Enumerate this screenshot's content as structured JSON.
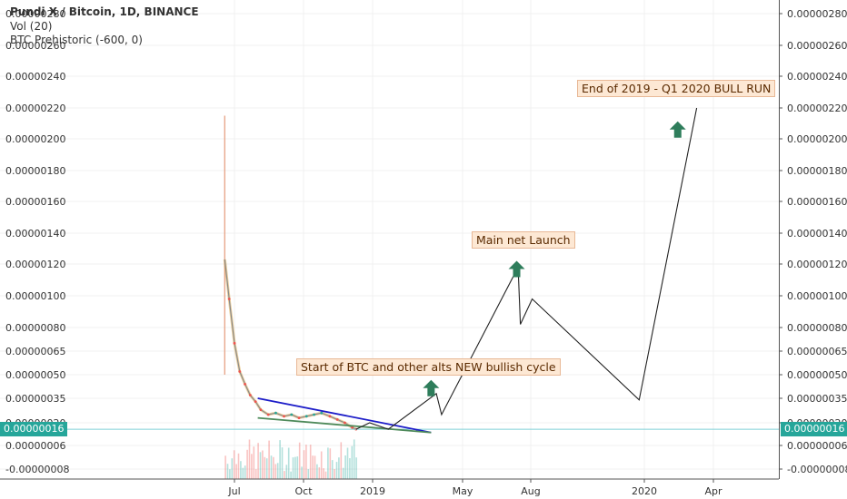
{
  "legend": {
    "title": "Pundi X / Bitcoin, 1D, BINANCE",
    "volume": "Vol (20)",
    "indicator": "BTC Prehistoric (-600, 0)"
  },
  "colors": {
    "up": "#26a69a",
    "down": "#ef5350",
    "projection": "#222222",
    "upper_trendline": "#1c1cc8",
    "lower_trendline": "#4e8a5a",
    "arrow": "#2e7d5b",
    "price_line": "#7fd0d6"
  },
  "chart_data": {
    "type": "line",
    "title": "Pundi X / Bitcoin, 1D, BINANCE",
    "y_ticks": [
      {
        "label": "0.00000280",
        "value": 2.8e-06
      },
      {
        "label": "0.00000260",
        "value": 2.6e-06
      },
      {
        "label": "0.00000240",
        "value": 2.4e-06
      },
      {
        "label": "0.00000220",
        "value": 2.2e-06
      },
      {
        "label": "0.00000200",
        "value": 2e-06
      },
      {
        "label": "0.00000180",
        "value": 1.8e-06
      },
      {
        "label": "0.00000160",
        "value": 1.6e-06
      },
      {
        "label": "0.00000140",
        "value": 1.4e-06
      },
      {
        "label": "0.00000120",
        "value": 1.2e-06
      },
      {
        "label": "0.00000100",
        "value": 1e-06
      },
      {
        "label": "0.00000080",
        "value": 8e-07
      },
      {
        "label": "0.00000065",
        "value": 6.5e-07
      },
      {
        "label": "0.00000050",
        "value": 5e-07
      },
      {
        "label": "0.00000035",
        "value": 3.5e-07
      },
      {
        "label": "0.00000020",
        "value": 2e-07
      },
      {
        "label": "0.00000006",
        "value": 6e-08
      },
      {
        "label": "-0.00000008",
        "value": -8e-08
      }
    ],
    "x_ticks": [
      "Jul",
      "Oct",
      "2019",
      "May",
      "Aug",
      "2020",
      "Apr"
    ],
    "x_tick_dates": [
      "2018-07-01",
      "2018-10-01",
      "2019-01-01",
      "2019-05-01",
      "2019-08-01",
      "2020-01-01",
      "2020-04-01"
    ],
    "last_price": {
      "label": "0.00000016",
      "value": 1.6e-07
    },
    "price_history": [
      {
        "date": "2018-06-18",
        "close": 1.23e-06
      },
      {
        "date": "2018-06-24",
        "close": 9.8e-07
      },
      {
        "date": "2018-07-01",
        "close": 7e-07
      },
      {
        "date": "2018-07-08",
        "close": 5.2e-07
      },
      {
        "date": "2018-07-15",
        "close": 4.4e-07
      },
      {
        "date": "2018-07-22",
        "close": 3.7e-07
      },
      {
        "date": "2018-07-29",
        "close": 3.3e-07
      },
      {
        "date": "2018-08-05",
        "close": 2.8e-07
      },
      {
        "date": "2018-08-15",
        "close": 2.5e-07
      },
      {
        "date": "2018-08-25",
        "close": 2.6e-07
      },
      {
        "date": "2018-09-05",
        "close": 2.4e-07
      },
      {
        "date": "2018-09-15",
        "close": 2.5e-07
      },
      {
        "date": "2018-09-25",
        "close": 2.3e-07
      },
      {
        "date": "2018-10-05",
        "close": 2.4e-07
      },
      {
        "date": "2018-10-15",
        "close": 2.5e-07
      },
      {
        "date": "2018-10-25",
        "close": 2.6e-07
      },
      {
        "date": "2018-11-05",
        "close": 2.4e-07
      },
      {
        "date": "2018-11-15",
        "close": 2.2e-07
      },
      {
        "date": "2018-11-25",
        "close": 2e-07
      },
      {
        "date": "2018-12-05",
        "close": 1.7e-07
      },
      {
        "date": "2018-12-10",
        "close": 1.6e-07
      }
    ],
    "projection": [
      {
        "date": "2018-12-10",
        "value": 1.6e-07
      },
      {
        "date": "2018-12-28",
        "value": 2e-07
      },
      {
        "date": "2019-01-22",
        "value": 1.6e-07
      },
      {
        "date": "2019-03-27",
        "value": 3.8e-07
      },
      {
        "date": "2019-04-03",
        "value": 2.5e-07
      },
      {
        "date": "2019-07-15",
        "value": 1.18e-06
      },
      {
        "date": "2019-07-18",
        "value": 8.2e-07
      },
      {
        "date": "2019-08-03",
        "value": 9.8e-07
      },
      {
        "date": "2019-12-25",
        "value": 3.4e-07
      },
      {
        "date": "2020-03-10",
        "value": 2.2e-06
      }
    ],
    "trendlines": [
      {
        "start": {
          "date": "2018-08-01",
          "value": 3.5e-07
        },
        "end": {
          "date": "2019-03-20",
          "value": 1.4e-07
        },
        "color": "#1c1cc8"
      },
      {
        "start": {
          "date": "2018-08-01",
          "value": 2.3e-07
        },
        "end": {
          "date": "2019-03-20",
          "value": 1.4e-07
        },
        "color": "#4e8a5a"
      }
    ],
    "annotations": [
      {
        "text": "Start of BTC and other alts NEW bullish cycle",
        "date": "2019-03-01",
        "value": 4e-07
      },
      {
        "text": "Main net Launch",
        "date": "2019-07-12",
        "value": 1.18e-06
      },
      {
        "text": "End of 2019 - Q1 2020 BULL RUN",
        "date": "2020-02-15",
        "value": 2.1e-06
      }
    ]
  }
}
